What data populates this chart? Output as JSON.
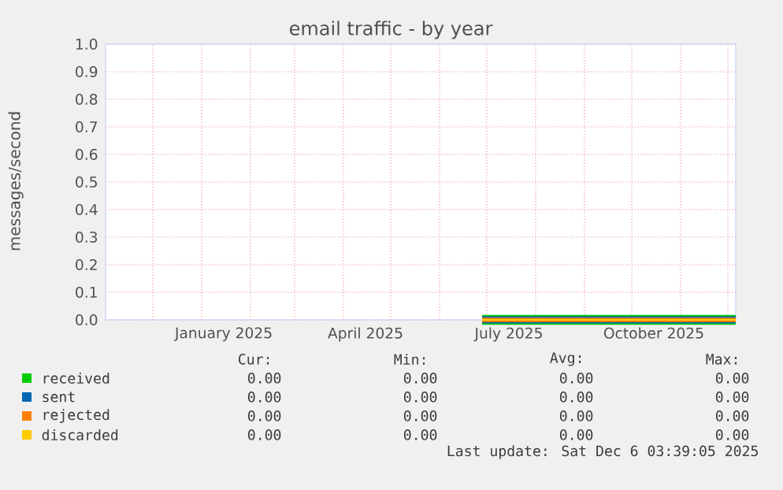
{
  "chart_data": {
    "type": "line",
    "title": "email traffic - by year",
    "ylabel": "messages/second",
    "xlim": [
      "2024-11-01",
      "2025-12-06"
    ],
    "ylim": [
      0,
      1
    ],
    "yticks": [
      {
        "value": 0,
        "label": "0.0"
      },
      {
        "value": 0.1,
        "label": "0.1"
      },
      {
        "value": 0.2,
        "label": "0.2"
      },
      {
        "value": 0.3,
        "label": "0.3"
      },
      {
        "value": 0.4,
        "label": "0.4"
      },
      {
        "value": 0.5,
        "label": "0.5"
      },
      {
        "value": 0.6,
        "label": "0.6"
      },
      {
        "value": 0.7,
        "label": "0.7"
      },
      {
        "value": 0.8,
        "label": "0.8"
      },
      {
        "value": 0.9,
        "label": "0.9"
      },
      {
        "value": 1,
        "label": "1.0"
      }
    ],
    "xticks": [
      {
        "value": "2024-12-01",
        "label": null
      },
      {
        "value": "2025-01-01",
        "label": null
      },
      {
        "value": "2025-02-01",
        "label": null
      },
      {
        "value": "2025-03-01",
        "label": null
      },
      {
        "value": "2025-04-01",
        "label": null
      },
      {
        "value": "2025-05-01",
        "label": null
      },
      {
        "value": "2025-06-01",
        "label": null
      },
      {
        "value": "2025-07-01",
        "label": null
      },
      {
        "value": "2025-08-01",
        "label": null
      },
      {
        "value": "2025-09-01",
        "label": null
      },
      {
        "value": "2025-10-01",
        "label": null
      },
      {
        "value": "2025-11-01",
        "label": null
      },
      {
        "value": "2025-12-01",
        "label": null
      },
      {
        "value": "2025-01-15",
        "label": "January 2025"
      },
      {
        "value": "2025-04-15",
        "label": "April 2025"
      },
      {
        "value": "2025-07-15",
        "label": "July 2025"
      },
      {
        "value": "2025-10-15",
        "label": "October 2025"
      }
    ],
    "grid": true,
    "legend": "bottom",
    "series": [
      {
        "name": "received",
        "color": "#00cc00",
        "x": [
          "2025-06-28",
          "2025-12-06"
        ],
        "values": [
          0,
          0
        ]
      },
      {
        "name": "sent",
        "color": "#0066b3",
        "x": [
          "2025-06-28",
          "2025-12-06"
        ],
        "values": [
          0,
          0
        ]
      },
      {
        "name": "rejected",
        "color": "#ff8000",
        "x": [
          "2025-06-28",
          "2025-12-06"
        ],
        "values": [
          0,
          0
        ]
      },
      {
        "name": "discarded",
        "color": "#ffcc00",
        "x": [
          "2025-06-28",
          "2025-12-06"
        ],
        "values": [
          0,
          0
        ]
      }
    ],
    "annotations": [
      "Cur:",
      "Min:",
      "Avg:",
      "Max:",
      "0.00",
      "0.00",
      "0.00",
      "0.00",
      "0.00",
      "0.00",
      "0.00",
      "0.00",
      "0.00",
      "0.00",
      "0.00",
      "0.00",
      "0.00",
      "0.00",
      "0.00",
      "0.00",
      "Last update: Sat Dec  6 03:39:05 2025"
    ]
  }
}
